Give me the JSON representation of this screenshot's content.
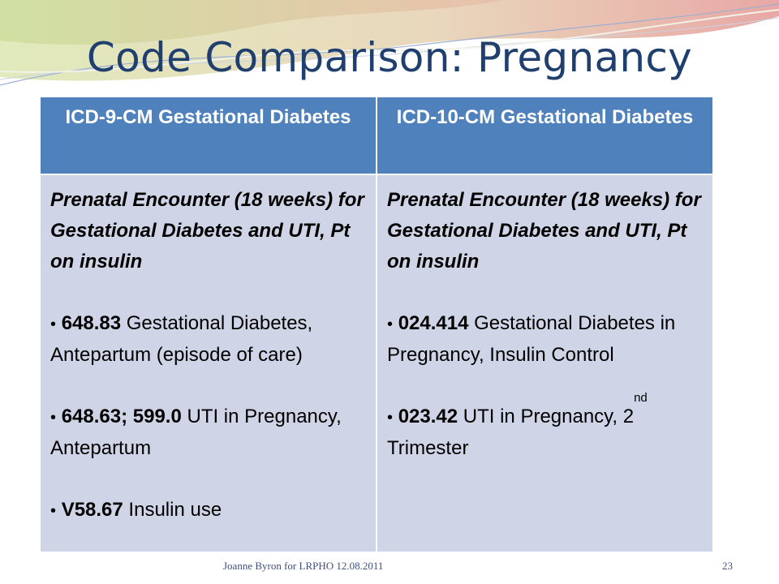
{
  "slide": {
    "title": "Code Comparison: Pregnancy",
    "footer": "Joanne Byron for LRPHO 12.08.2011",
    "page_number": "23"
  },
  "table": {
    "headers": [
      "ICD-9-CM  Gestational Diabetes",
      "ICD-10-CM Gestational Diabetes"
    ],
    "left": {
      "intro": "Prenatal Encounter (18 weeks) for Gestational Diabetes and UTI, Pt on insulin",
      "bullets": [
        {
          "code": "648.83",
          "text": " Gestational Diabetes, Antepartum (episode of care)"
        },
        {
          "code": "648.63; 599.0",
          "text": " UTI in Pregnancy, Antepartum"
        },
        {
          "code": "V58.67",
          "text": " Insulin use"
        }
      ]
    },
    "right": {
      "intro": "Prenatal Encounter (18 weeks) for Gestational Diabetes and UTI, Pt on insulin",
      "bullets": [
        {
          "code": "024.414",
          "text": " Gestational Diabetes in Pregnancy, Insulin Control"
        },
        {
          "code": "023.42",
          "text": " UTI in Pregnancy, 2",
          "sup": "nd",
          "text_after": " Trimester"
        }
      ]
    }
  },
  "colors": {
    "title": "#1f3f6e",
    "header_fill": "#4f81bd",
    "body_fill": "#cfd5e6"
  }
}
